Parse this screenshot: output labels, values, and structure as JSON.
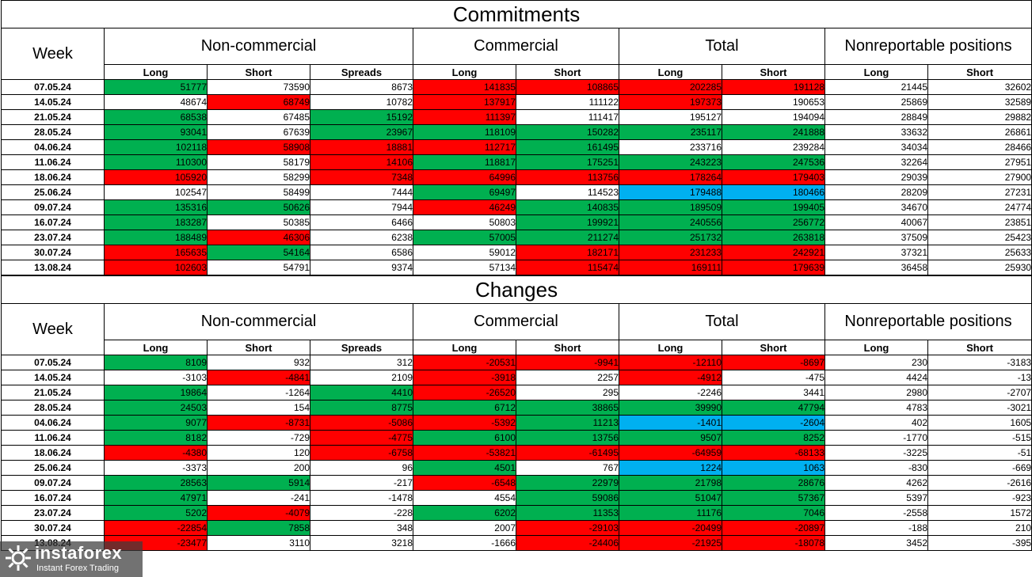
{
  "sections": [
    {
      "title": "Commitments",
      "header": {
        "week": "Week",
        "groups": [
          "Non-commercial",
          "Commercial",
          "Total",
          "Nonreportable positions"
        ],
        "columns": [
          "Long",
          "Short",
          "Spreads",
          "Long",
          "Short",
          "Long",
          "Short",
          "Long",
          "Short"
        ]
      },
      "rows": [
        {
          "week": "07.05.24",
          "values": [
            "51777",
            "73590",
            "8673",
            "141835",
            "108865",
            "202285",
            "191128",
            "21445",
            "32602"
          ],
          "colors": [
            "g",
            "",
            "",
            "r",
            "r",
            "r",
            "r",
            "",
            ""
          ]
        },
        {
          "week": "14.05.24",
          "values": [
            "48674",
            "68749",
            "10782",
            "137917",
            "111122",
            "197373",
            "190653",
            "25869",
            "32589"
          ],
          "colors": [
            "",
            "r",
            "",
            "r",
            "",
            "r",
            "",
            "",
            ""
          ]
        },
        {
          "week": "21.05.24",
          "values": [
            "68538",
            "67485",
            "15192",
            "111397",
            "111417",
            "195127",
            "194094",
            "28849",
            "29882"
          ],
          "colors": [
            "g",
            "",
            "g",
            "r",
            "",
            "",
            "",
            "",
            ""
          ]
        },
        {
          "week": "28.05.24",
          "values": [
            "93041",
            "67639",
            "23967",
            "118109",
            "150282",
            "235117",
            "241888",
            "33632",
            "26861"
          ],
          "colors": [
            "g",
            "",
            "g",
            "g",
            "g",
            "g",
            "g",
            "",
            ""
          ]
        },
        {
          "week": "04.06.24",
          "values": [
            "102118",
            "58908",
            "18881",
            "112717",
            "161495",
            "233716",
            "239284",
            "34034",
            "28466"
          ],
          "colors": [
            "g",
            "r",
            "r",
            "r",
            "g",
            "",
            "",
            "",
            ""
          ]
        },
        {
          "week": "11.06.24",
          "values": [
            "110300",
            "58179",
            "14106",
            "118817",
            "175251",
            "243223",
            "247536",
            "32264",
            "27951"
          ],
          "colors": [
            "g",
            "",
            "r",
            "g",
            "g",
            "g",
            "g",
            "",
            ""
          ]
        },
        {
          "week": "18.06.24",
          "values": [
            "105920",
            "58299",
            "7348",
            "64996",
            "113756",
            "178264",
            "179403",
            "29039",
            "27900"
          ],
          "colors": [
            "r",
            "",
            "r",
            "r",
            "r",
            "r",
            "r",
            "",
            ""
          ]
        },
        {
          "week": "25.06.24",
          "values": [
            "102547",
            "58499",
            "7444",
            "69497",
            "114523",
            "179488",
            "180466",
            "28209",
            "27231"
          ],
          "colors": [
            "",
            "",
            "",
            "g",
            "",
            "b",
            "b",
            "",
            ""
          ]
        },
        {
          "week": "09.07.24",
          "values": [
            "135316",
            "50626",
            "7944",
            "46249",
            "140835",
            "189509",
            "199405",
            "34670",
            "24774"
          ],
          "colors": [
            "g",
            "g",
            "",
            "r",
            "g",
            "g",
            "g",
            "",
            ""
          ]
        },
        {
          "week": "16.07.24",
          "values": [
            "183287",
            "50385",
            "6466",
            "50803",
            "199921",
            "240556",
            "256772",
            "40067",
            "23851"
          ],
          "colors": [
            "g",
            "",
            "",
            "",
            "g",
            "g",
            "g",
            "",
            ""
          ]
        },
        {
          "week": "23.07.24",
          "values": [
            "188489",
            "46306",
            "6238",
            "57005",
            "211274",
            "251732",
            "263818",
            "37509",
            "25423"
          ],
          "colors": [
            "g",
            "r",
            "",
            "g",
            "g",
            "g",
            "g",
            "",
            ""
          ]
        },
        {
          "week": "30.07.24",
          "values": [
            "165635",
            "54164",
            "6586",
            "59012",
            "182171",
            "231233",
            "242921",
            "37321",
            "25633"
          ],
          "colors": [
            "r",
            "g",
            "",
            "",
            "r",
            "r",
            "r",
            "",
            ""
          ]
        },
        {
          "week": "13.08.24",
          "values": [
            "102603",
            "54791",
            "9374",
            "57134",
            "115474",
            "169111",
            "179639",
            "36458",
            "25930"
          ],
          "colors": [
            "r",
            "",
            "",
            "",
            "r",
            "r",
            "r",
            "",
            ""
          ]
        }
      ]
    },
    {
      "title": "Changes",
      "header": {
        "week": "Week",
        "groups": [
          "Non-commercial",
          "Commercial",
          "Total",
          "Nonreportable positions"
        ],
        "columns": [
          "Long",
          "Short",
          "Spreads",
          "Long",
          "Short",
          "Long",
          "Short",
          "Long",
          "Short"
        ]
      },
      "rows": [
        {
          "week": "07.05.24",
          "values": [
            "8109",
            "932",
            "312",
            "-20531",
            "-9941",
            "-12110",
            "-8697",
            "230",
            "-3183"
          ],
          "colors": [
            "g",
            "",
            "",
            "r",
            "r",
            "r",
            "r",
            "",
            ""
          ]
        },
        {
          "week": "14.05.24",
          "values": [
            "-3103",
            "-4841",
            "2109",
            "-3918",
            "2257",
            "-4912",
            "-475",
            "4424",
            "-13"
          ],
          "colors": [
            "",
            "r",
            "",
            "r",
            "",
            "r",
            "",
            "",
            ""
          ]
        },
        {
          "week": "21.05.24",
          "values": [
            "19864",
            "-1264",
            "4410",
            "-26520",
            "295",
            "-2246",
            "3441",
            "2980",
            "-2707"
          ],
          "colors": [
            "g",
            "",
            "g",
            "r",
            "",
            "",
            "",
            "",
            ""
          ]
        },
        {
          "week": "28.05.24",
          "values": [
            "24503",
            "154",
            "8775",
            "6712",
            "38865",
            "39990",
            "47794",
            "4783",
            "-3021"
          ],
          "colors": [
            "g",
            "",
            "g",
            "g",
            "g",
            "g",
            "g",
            "",
            ""
          ]
        },
        {
          "week": "04.06.24",
          "values": [
            "9077",
            "-8731",
            "-5086",
            "-5392",
            "11213",
            "-1401",
            "-2604",
            "402",
            "1605"
          ],
          "colors": [
            "g",
            "r",
            "r",
            "r",
            "g",
            "b",
            "b",
            "",
            ""
          ]
        },
        {
          "week": "11.06.24",
          "values": [
            "8182",
            "-729",
            "-4775",
            "6100",
            "13756",
            "9507",
            "8252",
            "-1770",
            "-515"
          ],
          "colors": [
            "g",
            "",
            "r",
            "g",
            "g",
            "g",
            "g",
            "",
            ""
          ]
        },
        {
          "week": "18.06.24",
          "values": [
            "-4380",
            "120",
            "-6758",
            "-53821",
            "-61495",
            "-64959",
            "-68133",
            "-3225",
            "-51"
          ],
          "colors": [
            "r",
            "",
            "r",
            "r",
            "r",
            "r",
            "r",
            "",
            ""
          ]
        },
        {
          "week": "25.06.24",
          "values": [
            "-3373",
            "200",
            "96",
            "4501",
            "767",
            "1224",
            "1063",
            "-830",
            "-669"
          ],
          "colors": [
            "",
            "",
            "",
            "g",
            "",
            "b",
            "b",
            "",
            ""
          ]
        },
        {
          "week": "09.07.24",
          "values": [
            "28563",
            "5914",
            "-217",
            "-6548",
            "22979",
            "21798",
            "28676",
            "4262",
            "-2616"
          ],
          "colors": [
            "g",
            "g",
            "",
            "r",
            "g",
            "g",
            "g",
            "",
            ""
          ]
        },
        {
          "week": "16.07.24",
          "values": [
            "47971",
            "-241",
            "-1478",
            "4554",
            "59086",
            "51047",
            "57367",
            "5397",
            "-923"
          ],
          "colors": [
            "g",
            "",
            "",
            "",
            "g",
            "g",
            "g",
            "",
            ""
          ]
        },
        {
          "week": "23.07.24",
          "values": [
            "5202",
            "-4079",
            "-228",
            "6202",
            "11353",
            "11176",
            "7046",
            "-2558",
            "1572"
          ],
          "colors": [
            "g",
            "r",
            "",
            "g",
            "g",
            "g",
            "g",
            "",
            ""
          ]
        },
        {
          "week": "30.07.24",
          "values": [
            "-22854",
            "7858",
            "348",
            "2007",
            "-29103",
            "-20499",
            "-20897",
            "-188",
            "210"
          ],
          "colors": [
            "r",
            "g",
            "",
            "",
            "r",
            "r",
            "r",
            "",
            ""
          ]
        },
        {
          "week": "13.08.24",
          "values": [
            "-23477",
            "3110",
            "3218",
            "-1666",
            "-24406",
            "-21925",
            "-18078",
            "3452",
            "-395"
          ],
          "colors": [
            "r",
            "",
            "",
            "",
            "r",
            "r",
            "r",
            "",
            ""
          ]
        }
      ]
    }
  ],
  "watermark": {
    "brand": "instaforex",
    "tagline": "Instant Forex Trading",
    "logo_icon": "instaforex-logo-icon"
  },
  "palette": {
    "green": "#00b050",
    "red": "#ff0000",
    "blue": "#00b0f0"
  }
}
